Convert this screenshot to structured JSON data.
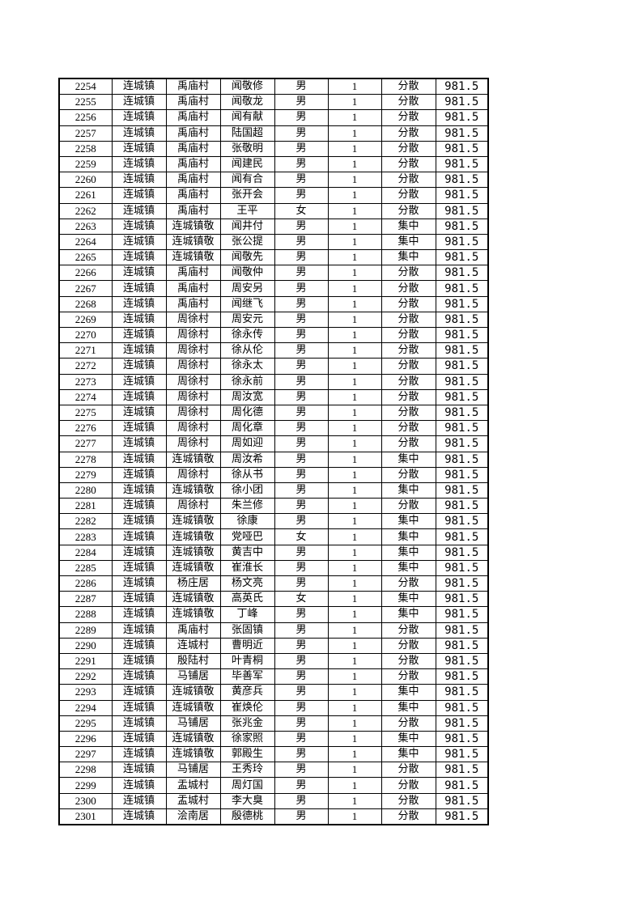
{
  "rows": [
    [
      "2254",
      "连城镇",
      "禹庙村",
      "闻敬修",
      "男",
      "1",
      "分散",
      "981.5"
    ],
    [
      "2255",
      "连城镇",
      "禹庙村",
      "闻敬龙",
      "男",
      "1",
      "分散",
      "981.5"
    ],
    [
      "2256",
      "连城镇",
      "禹庙村",
      "闻有献",
      "男",
      "1",
      "分散",
      "981.5"
    ],
    [
      "2257",
      "连城镇",
      "禹庙村",
      "陆国超",
      "男",
      "1",
      "分散",
      "981.5"
    ],
    [
      "2258",
      "连城镇",
      "禹庙村",
      "张敬明",
      "男",
      "1",
      "分散",
      "981.5"
    ],
    [
      "2259",
      "连城镇",
      "禹庙村",
      "闻建民",
      "男",
      "1",
      "分散",
      "981.5"
    ],
    [
      "2260",
      "连城镇",
      "禹庙村",
      "闻有合",
      "男",
      "1",
      "分散",
      "981.5"
    ],
    [
      "2261",
      "连城镇",
      "禹庙村",
      "张开会",
      "男",
      "1",
      "分散",
      "981.5"
    ],
    [
      "2262",
      "连城镇",
      "禹庙村",
      "王平",
      "女",
      "1",
      "分散",
      "981.5"
    ],
    [
      "2263",
      "连城镇",
      "连城镇敬",
      "闻井付",
      "男",
      "1",
      "集中",
      "981.5"
    ],
    [
      "2264",
      "连城镇",
      "连城镇敬",
      "张公提",
      "男",
      "1",
      "集中",
      "981.5"
    ],
    [
      "2265",
      "连城镇",
      "连城镇敬",
      "闻敬先",
      "男",
      "1",
      "集中",
      "981.5"
    ],
    [
      "2266",
      "连城镇",
      "禹庙村",
      "闻敬仲",
      "男",
      "1",
      "分散",
      "981.5"
    ],
    [
      "2267",
      "连城镇",
      "禹庙村",
      "周安另",
      "男",
      "1",
      "分散",
      "981.5"
    ],
    [
      "2268",
      "连城镇",
      "禹庙村",
      "闻继飞",
      "男",
      "1",
      "分散",
      "981.5"
    ],
    [
      "2269",
      "连城镇",
      "周徐村",
      "周安元",
      "男",
      "1",
      "分散",
      "981.5"
    ],
    [
      "2270",
      "连城镇",
      "周徐村",
      "徐永传",
      "男",
      "1",
      "分散",
      "981.5"
    ],
    [
      "2271",
      "连城镇",
      "周徐村",
      "徐从伦",
      "男",
      "1",
      "分散",
      "981.5"
    ],
    [
      "2272",
      "连城镇",
      "周徐村",
      "徐永太",
      "男",
      "1",
      "分散",
      "981.5"
    ],
    [
      "2273",
      "连城镇",
      "周徐村",
      "徐永前",
      "男",
      "1",
      "分散",
      "981.5"
    ],
    [
      "2274",
      "连城镇",
      "周徐村",
      "周汝宽",
      "男",
      "1",
      "分散",
      "981.5"
    ],
    [
      "2275",
      "连城镇",
      "周徐村",
      "周化德",
      "男",
      "1",
      "分散",
      "981.5"
    ],
    [
      "2276",
      "连城镇",
      "周徐村",
      "周化章",
      "男",
      "1",
      "分散",
      "981.5"
    ],
    [
      "2277",
      "连城镇",
      "周徐村",
      "周如迎",
      "男",
      "1",
      "分散",
      "981.5"
    ],
    [
      "2278",
      "连城镇",
      "连城镇敬",
      "周汝希",
      "男",
      "1",
      "集中",
      "981.5"
    ],
    [
      "2279",
      "连城镇",
      "周徐村",
      "徐从书",
      "男",
      "1",
      "分散",
      "981.5"
    ],
    [
      "2280",
      "连城镇",
      "连城镇敬",
      "徐小团",
      "男",
      "1",
      "集中",
      "981.5"
    ],
    [
      "2281",
      "连城镇",
      "周徐村",
      "朱兰修",
      "男",
      "1",
      "分散",
      "981.5"
    ],
    [
      "2282",
      "连城镇",
      "连城镇敬",
      "徐康",
      "男",
      "1",
      "集中",
      "981.5"
    ],
    [
      "2283",
      "连城镇",
      "连城镇敬",
      "党哑巴",
      "女",
      "1",
      "集中",
      "981.5"
    ],
    [
      "2284",
      "连城镇",
      "连城镇敬",
      "黄吉中",
      "男",
      "1",
      "集中",
      "981.5"
    ],
    [
      "2285",
      "连城镇",
      "连城镇敬",
      "崔淮长",
      "男",
      "1",
      "集中",
      "981.5"
    ],
    [
      "2286",
      "连城镇",
      "杨庄居",
      "杨文亮",
      "男",
      "1",
      "分散",
      "981.5"
    ],
    [
      "2287",
      "连城镇",
      "连城镇敬",
      "高英氏",
      "女",
      "1",
      "集中",
      "981.5"
    ],
    [
      "2288",
      "连城镇",
      "连城镇敬",
      "丁峰",
      "男",
      "1",
      "集中",
      "981.5"
    ],
    [
      "2289",
      "连城镇",
      "禹庙村",
      "张固镇",
      "男",
      "1",
      "分散",
      "981.5"
    ],
    [
      "2290",
      "连城镇",
      "连城村",
      "曹明近",
      "男",
      "1",
      "分散",
      "981.5"
    ],
    [
      "2291",
      "连城镇",
      "殷陆村",
      "叶青桐",
      "男",
      "1",
      "分散",
      "981.5"
    ],
    [
      "2292",
      "连城镇",
      "马铺居",
      "毕善军",
      "男",
      "1",
      "分散",
      "981.5"
    ],
    [
      "2293",
      "连城镇",
      "连城镇敬",
      "黄彦兵",
      "男",
      "1",
      "集中",
      "981.5"
    ],
    [
      "2294",
      "连城镇",
      "连城镇敬",
      "崔焕伦",
      "男",
      "1",
      "集中",
      "981.5"
    ],
    [
      "2295",
      "连城镇",
      "马铺居",
      "张兆金",
      "男",
      "1",
      "分散",
      "981.5"
    ],
    [
      "2296",
      "连城镇",
      "连城镇敬",
      "徐家照",
      "男",
      "1",
      "集中",
      "981.5"
    ],
    [
      "2297",
      "连城镇",
      "连城镇敬",
      "郭殿生",
      "男",
      "1",
      "集中",
      "981.5"
    ],
    [
      "2298",
      "连城镇",
      "马铺居",
      "王秀玲",
      "男",
      "1",
      "分散",
      "981.5"
    ],
    [
      "2299",
      "连城镇",
      "盂城村",
      "周灯国",
      "男",
      "1",
      "分散",
      "981.5"
    ],
    [
      "2300",
      "连城镇",
      "盂城村",
      "李大臭",
      "男",
      "1",
      "分散",
      "981.5"
    ],
    [
      "2301",
      "连城镇",
      "浍南居",
      "殷德桃",
      "男",
      "1",
      "分散",
      "981.5"
    ]
  ]
}
